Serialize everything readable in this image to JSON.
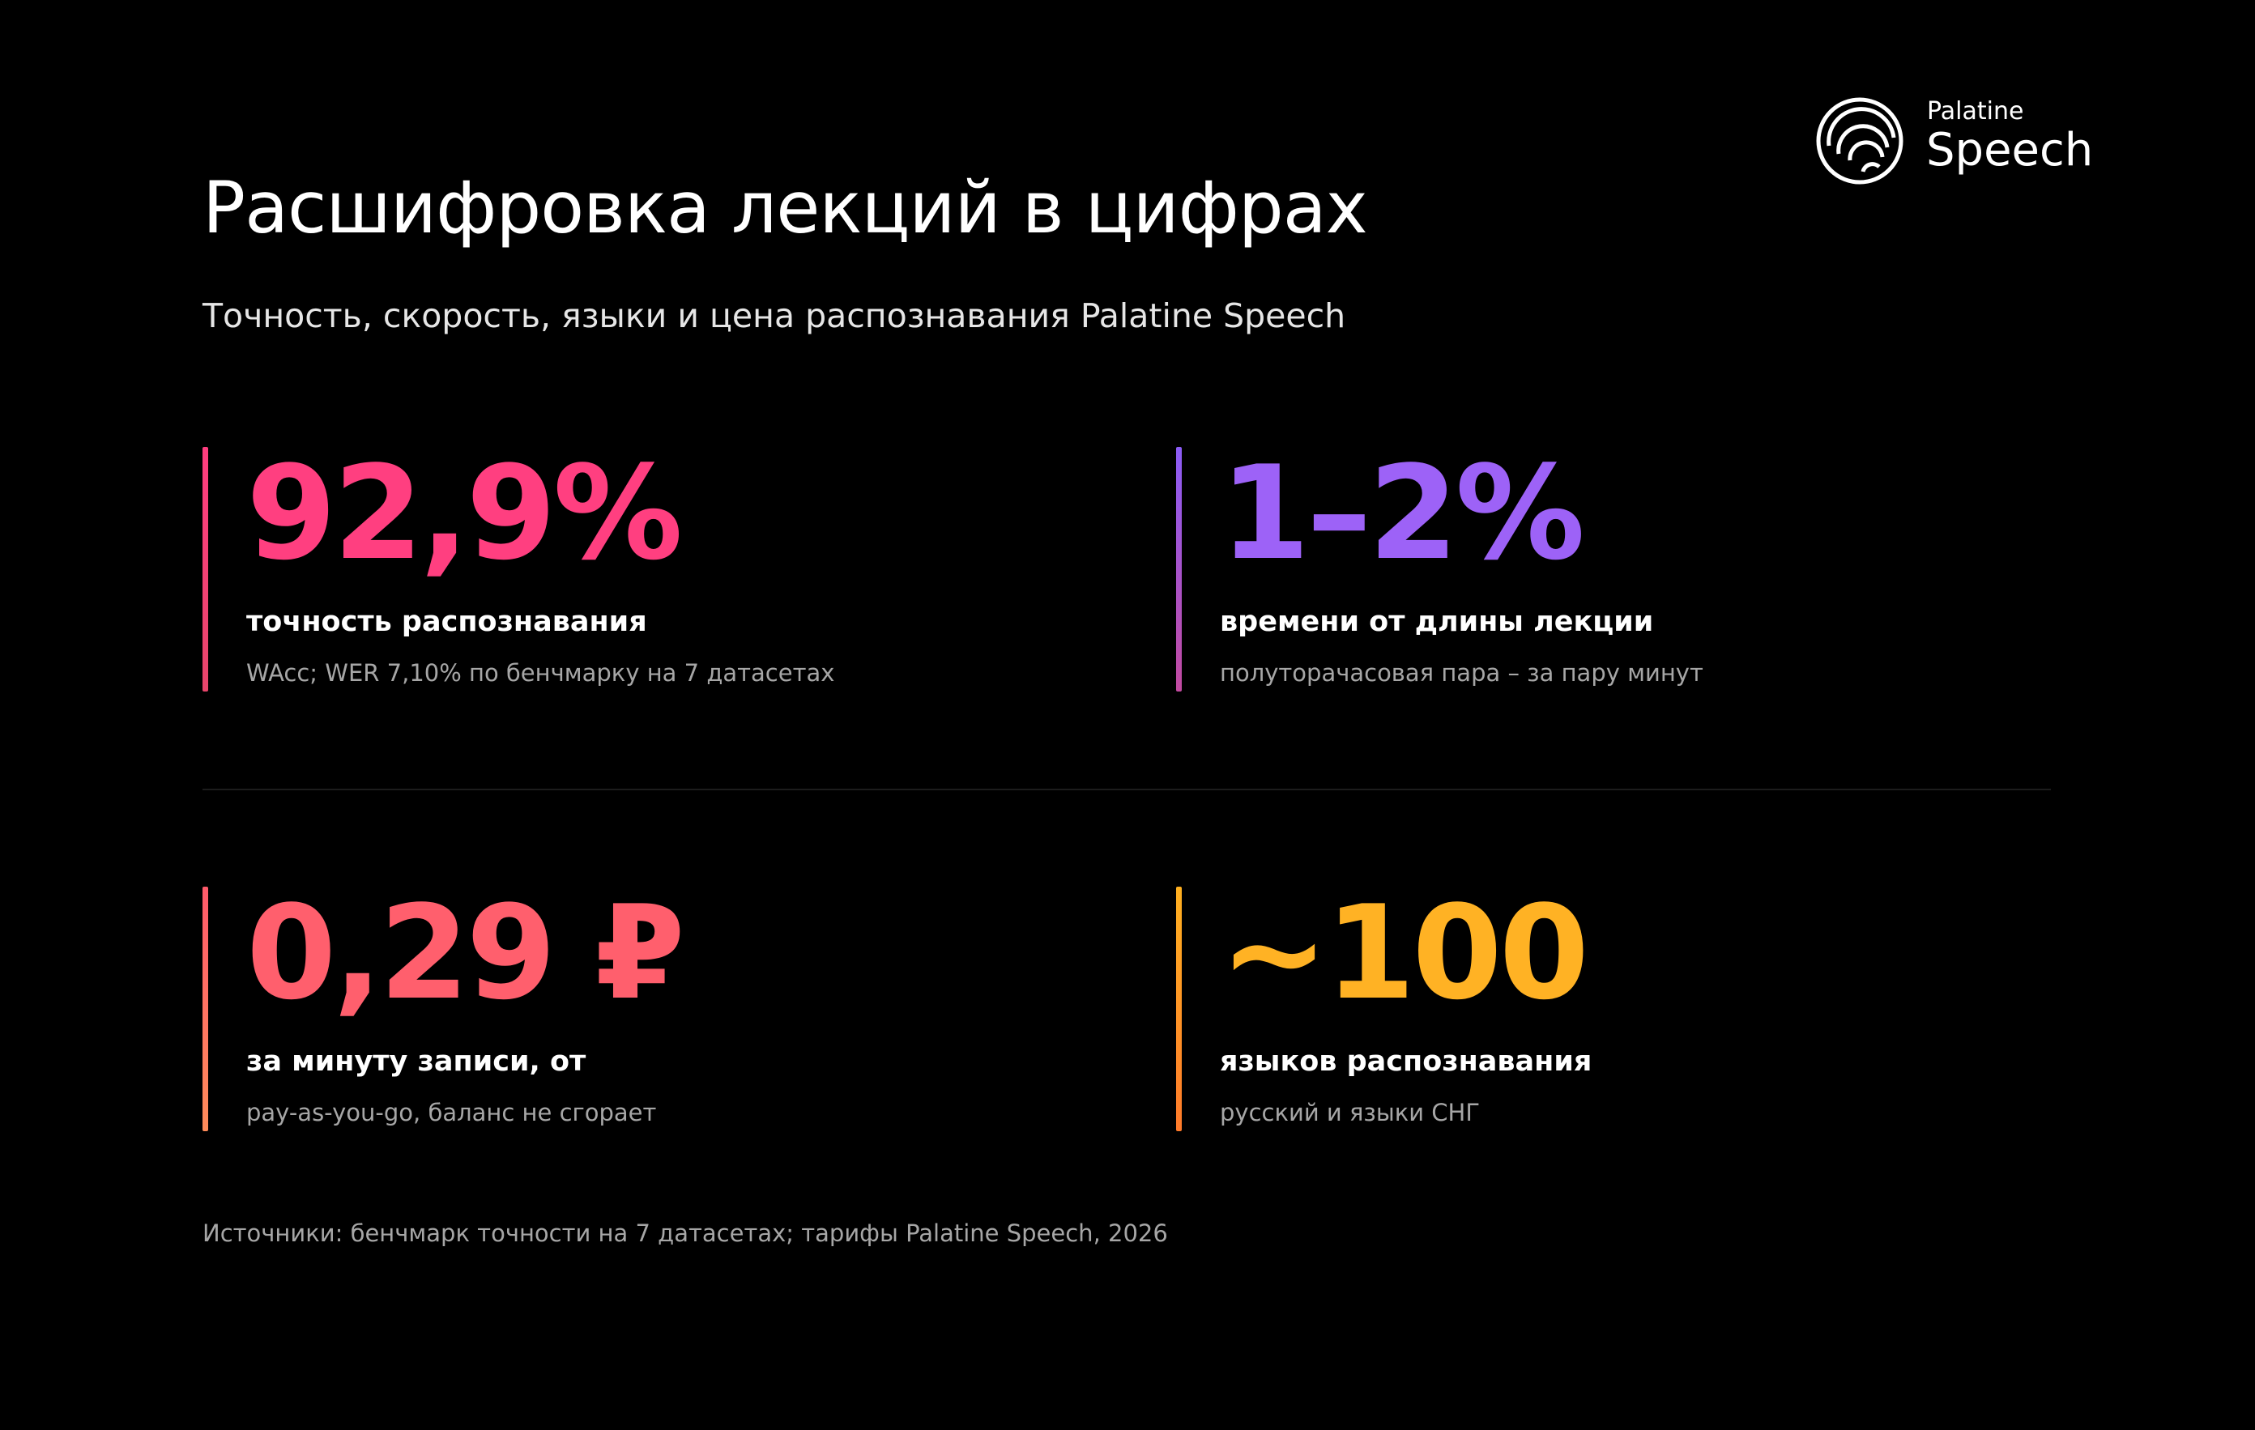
{
  "header": {
    "title": "Расшифровка лекций в цифрах",
    "subtitle": "Точность, скорость, языки и цена распознавания Palatine Speech"
  },
  "logo": {
    "line1": "Palatine",
    "line2": "Speech"
  },
  "stats": [
    {
      "value": "92,9%",
      "label": "точность распознавания",
      "note": "WAcc; WER 7,10% по бенчмарку на 7 датасетах"
    },
    {
      "value": "1–2%",
      "label": "времени от длины лекции",
      "note": "полуторачасовая пара – за пару минут"
    },
    {
      "value": "0,29 ₽",
      "label": "за минуту записи, от",
      "note": "pay-as-you-go, баланс не сгорает"
    },
    {
      "value": "~100",
      "label": "языков распознавания",
      "note": "русский и языки СНГ"
    }
  ],
  "footer": {
    "source": "Источники: бенчмарк точности на 7 датасетах; тарифы Palatine Speech, 2026"
  }
}
